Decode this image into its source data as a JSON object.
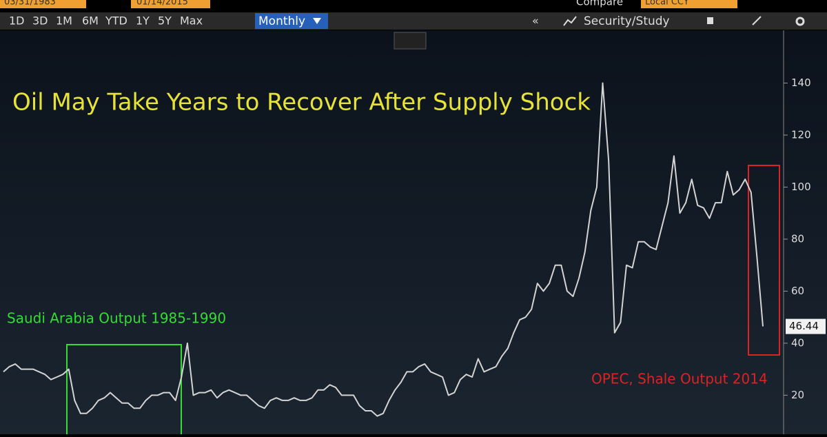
{
  "toolbar": {
    "start_date": "03/31/1983",
    "end_date": "01/14/2015",
    "compare": "Compare",
    "currency": "Local CCY",
    "ranges": [
      "1D",
      "3D",
      "1M",
      "6M",
      "YTD",
      "1Y",
      "5Y",
      "Max"
    ],
    "period": "Monthly",
    "security_study": "Security/Study"
  },
  "chart_data": {
    "type": "line",
    "title": "Oil May Take Years to Recover After Supply Shock",
    "annotations": [
      {
        "text": "Saudi Arabia Output 1985-1990",
        "color": "#33dd33"
      },
      {
        "text": "OPEC, Shale Output 2014",
        "color": "#dd2222"
      }
    ],
    "series": [
      {
        "color": "#d4d4d4",
        "values": [
          29,
          31,
          32,
          30,
          30,
          30,
          29,
          28,
          26,
          27,
          28,
          30,
          18,
          13,
          13,
          15,
          18,
          19,
          21,
          19,
          17,
          17,
          15,
          15,
          18,
          20,
          20,
          21,
          21,
          18,
          27,
          40,
          20,
          21,
          21,
          22,
          19,
          21,
          22,
          21,
          20,
          20,
          18,
          16,
          15,
          18,
          19,
          18,
          18,
          19,
          18,
          18,
          19,
          22,
          22,
          24,
          23,
          20,
          20,
          20,
          16,
          14,
          14,
          12,
          13,
          18,
          22,
          25,
          29,
          29,
          31,
          32,
          29,
          28,
          27,
          20,
          21,
          26,
          28,
          27,
          34,
          29,
          30,
          31,
          35,
          38,
          44,
          49,
          50,
          53,
          63,
          60,
          63,
          70,
          70,
          60,
          58,
          65,
          75,
          91,
          100,
          140,
          110,
          44,
          48,
          70,
          69,
          79,
          79,
          77,
          76,
          85,
          94,
          112,
          90,
          94,
          103,
          93,
          92,
          88,
          94,
          94,
          106,
          97,
          99,
          103,
          98,
          73,
          46.44
        ]
      }
    ],
    "ylim": [
      5,
      160
    ],
    "yticks": [
      20,
      40,
      60,
      80,
      100,
      120,
      140
    ],
    "grid": false
  }
}
